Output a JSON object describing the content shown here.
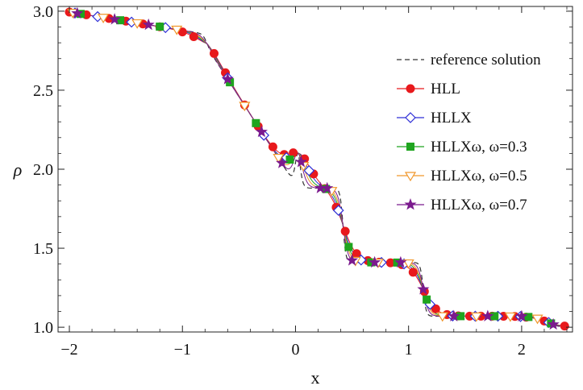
{
  "chart_data": {
    "type": "line",
    "xlabel": "x",
    "ylabel": "ρ",
    "xlim": [
      -2.1,
      2.45
    ],
    "ylim": [
      0.97,
      3.03
    ],
    "xticks": [
      -2,
      -1,
      0,
      1,
      2
    ],
    "xtick_labels": [
      "−2",
      "−1",
      "0",
      "1",
      "2"
    ],
    "yticks": [
      1.0,
      1.5,
      2.0,
      2.5,
      3.0
    ],
    "ytick_labels": [
      "1.0",
      "1.5",
      "2.0",
      "2.5",
      "3.0"
    ],
    "grid": false,
    "legend_position": "top-right",
    "series": [
      {
        "name": "reference solution",
        "color": "#333333",
        "dash": true,
        "marker": "none",
        "width": 0.025,
        "plat1": 2.77,
        "plat2": 1.88,
        "plat3": 1.41,
        "markers_x": []
      },
      {
        "name": "HLL",
        "color": "#e8191c",
        "dash": false,
        "marker": "circle",
        "width": 0.12,
        "plat1": 2.77,
        "plat2": 1.88,
        "plat3": 1.41,
        "markers_x": [
          -2.0,
          -1.85,
          -1.65,
          -1.5,
          -1.35,
          -1.2,
          -1.0,
          -0.9,
          -0.72,
          -0.62,
          -0.45,
          -0.33,
          -0.2,
          -0.1,
          -0.02,
          0.08,
          0.16,
          0.26,
          0.36,
          0.44,
          0.54,
          0.64,
          0.74,
          0.84,
          0.94,
          1.04,
          1.14,
          1.24,
          1.34,
          1.44,
          1.54,
          1.64,
          1.74,
          1.84,
          1.94,
          2.04,
          2.2,
          2.38
        ]
      },
      {
        "name": "HLLX",
        "color": "#2e2ed6",
        "dash": false,
        "marker": "diamond-open",
        "width": 0.095,
        "plat1": 2.77,
        "plat2": 1.88,
        "plat3": 1.41,
        "markers_x": [
          -1.95,
          -1.75,
          -1.45,
          -1.15,
          -0.6,
          -0.28,
          -0.08,
          0.12,
          0.38,
          0.58,
          0.76,
          0.96,
          1.19,
          1.39,
          1.59,
          1.79,
          1.99,
          2.24
        ]
      },
      {
        "name": "HLLXω, ω=0.3",
        "color": "#1fa51f",
        "dash": false,
        "marker": "square",
        "width": 0.075,
        "plat1": 2.77,
        "plat2": 1.88,
        "plat3": 1.41,
        "markers_x": [
          -1.9,
          -1.55,
          -1.2,
          -0.58,
          -0.35,
          -0.05,
          0.27,
          0.47,
          0.67,
          0.9,
          1.16,
          1.46,
          1.76,
          2.06,
          2.26
        ]
      },
      {
        "name": "HLLXω, ω=0.5",
        "color": "#f0962a",
        "dash": false,
        "marker": "triangle-down-open",
        "width": 0.06,
        "plat1": 2.77,
        "plat2": 1.88,
        "plat3": 1.41,
        "markers_x": [
          -1.97,
          -1.7,
          -1.4,
          -1.05,
          -0.45,
          -0.15,
          0.07,
          0.32,
          0.53,
          0.73,
          1.0,
          1.3,
          1.6,
          1.9,
          2.14
        ]
      },
      {
        "name": "HLLXω, ω=0.7",
        "color": "#7b1a8e",
        "dash": false,
        "marker": "star",
        "width": 0.045,
        "plat1": 2.77,
        "plat2": 1.88,
        "plat3": 1.41,
        "markers_x": [
          -1.93,
          -1.6,
          -1.3,
          -0.6,
          -0.3,
          -0.12,
          0.05,
          0.22,
          0.28,
          0.5,
          0.7,
          0.93,
          1.13,
          1.4,
          1.7,
          2.0,
          2.28
        ]
      }
    ]
  }
}
